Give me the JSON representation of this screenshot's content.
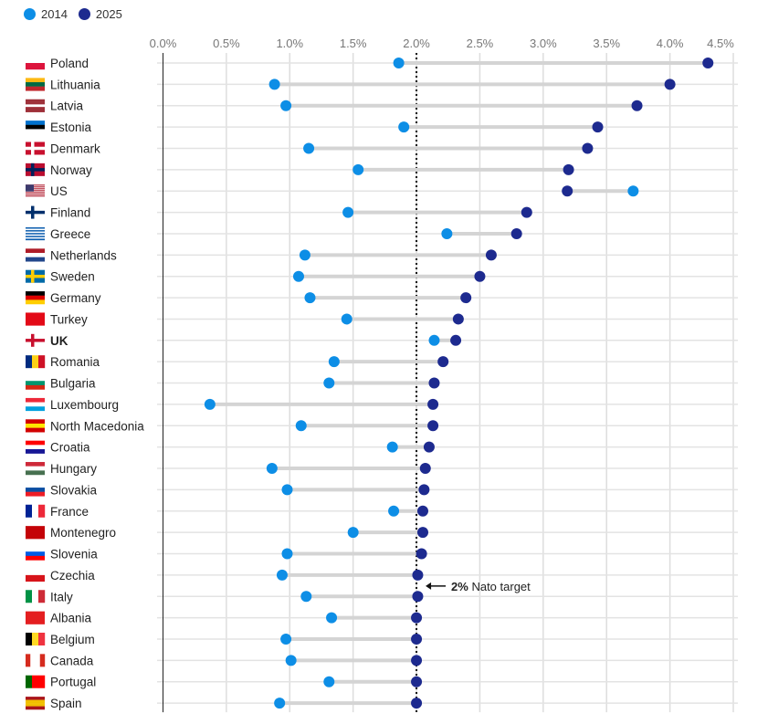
{
  "colors": {
    "y2014": "#0d8ee6",
    "y2025": "#1d2a8f",
    "grid": "#dddddd",
    "connector": "#d4d4d4"
  },
  "legend": [
    {
      "label": "2014",
      "color": "#0d8ee6"
    },
    {
      "label": "2025",
      "color": "#1d2a8f"
    }
  ],
  "chart_data": {
    "type": "dumbbell",
    "title": "",
    "xlabel": "",
    "ylabel": "",
    "xlim": [
      0,
      4.5
    ],
    "ticks": [
      "0.0%",
      "0.5%",
      "1.0%",
      "1.5%",
      "2.0%",
      "2.5%",
      "3.0%",
      "3.5%",
      "4.0%",
      "4.5%"
    ],
    "tick_values": [
      0,
      0.5,
      1,
      1.5,
      2,
      2.5,
      3,
      3.5,
      4,
      4.5
    ],
    "reference": {
      "value": 2.0,
      "label_bold": "2%",
      "label": " Nato target"
    },
    "series_names": [
      "2014",
      "2025"
    ],
    "countries": [
      {
        "name": "Poland",
        "v2014": 1.86,
        "v2025": 4.3,
        "flag": [
          "h",
          "#ffffff",
          "#dc143c"
        ]
      },
      {
        "name": "Lithuania",
        "v2014": 0.88,
        "v2025": 4.0,
        "flag": [
          "h",
          "#fdb913",
          "#006a44",
          "#c1272d"
        ]
      },
      {
        "name": "Latvia",
        "v2014": 0.97,
        "v2025": 3.74,
        "flag": [
          "h",
          "#9e3039",
          "#9e3039",
          "#ffffff",
          "#9e3039",
          "#9e3039"
        ]
      },
      {
        "name": "Estonia",
        "v2014": 1.9,
        "v2025": 3.43,
        "flag": [
          "h",
          "#0072ce",
          "#000000",
          "#ffffff"
        ]
      },
      {
        "name": "Denmark",
        "v2014": 1.15,
        "v2025": 3.35,
        "flag": [
          "cross",
          "#c8102e",
          "#ffffff"
        ]
      },
      {
        "name": "Norway",
        "v2014": 1.54,
        "v2025": 3.2,
        "flag": [
          "cross",
          "#ba0c2f",
          "#00205b"
        ]
      },
      {
        "name": "US",
        "v2014": 3.71,
        "v2025": 3.19,
        "flag": [
          "us",
          "#b22234",
          "#3c3b6e"
        ]
      },
      {
        "name": "Finland",
        "v2014": 1.46,
        "v2025": 2.87,
        "flag": [
          "cross",
          "#ffffff",
          "#002f6c"
        ]
      },
      {
        "name": "Greece",
        "v2014": 2.24,
        "v2025": 2.79,
        "flag": [
          "h",
          "#0d5eaf",
          "#ffffff",
          "#0d5eaf",
          "#ffffff",
          "#0d5eaf",
          "#ffffff",
          "#0d5eaf",
          "#ffffff",
          "#0d5eaf"
        ]
      },
      {
        "name": "Netherlands",
        "v2014": 1.12,
        "v2025": 2.59,
        "flag": [
          "h",
          "#ae1c28",
          "#ffffff",
          "#21468b"
        ]
      },
      {
        "name": "Sweden",
        "v2014": 1.07,
        "v2025": 2.5,
        "flag": [
          "cross",
          "#006aa7",
          "#fecc00"
        ]
      },
      {
        "name": "Germany",
        "v2014": 1.16,
        "v2025": 2.39,
        "flag": [
          "h",
          "#000000",
          "#dd0000",
          "#ffce00"
        ]
      },
      {
        "name": "Turkey",
        "v2014": 1.45,
        "v2025": 2.33,
        "flag": [
          "h",
          "#e30a17"
        ]
      },
      {
        "name": "UK",
        "v2014": 2.14,
        "v2025": 2.31,
        "flag": [
          "cross",
          "#ffffff",
          "#c8102e"
        ],
        "bold": true
      },
      {
        "name": "Romania",
        "v2014": 1.35,
        "v2025": 2.21,
        "flag": [
          "v",
          "#002b7f",
          "#fcd116",
          "#ce1126"
        ]
      },
      {
        "name": "Bulgaria",
        "v2014": 1.31,
        "v2025": 2.14,
        "flag": [
          "h",
          "#ffffff",
          "#00966e",
          "#d62612"
        ]
      },
      {
        "name": "Luxembourg",
        "v2014": 0.37,
        "v2025": 2.13,
        "flag": [
          "h",
          "#ed2939",
          "#ffffff",
          "#00a1de"
        ]
      },
      {
        "name": "North Macedonia",
        "v2014": 1.09,
        "v2025": 2.13,
        "flag": [
          "h",
          "#d20000",
          "#ffe600",
          "#d20000"
        ]
      },
      {
        "name": "Croatia",
        "v2014": 1.81,
        "v2025": 2.1,
        "flag": [
          "h",
          "#ff0000",
          "#ffffff",
          "#171796"
        ]
      },
      {
        "name": "Hungary",
        "v2014": 0.86,
        "v2025": 2.07,
        "flag": [
          "h",
          "#ce2939",
          "#ffffff",
          "#477050"
        ]
      },
      {
        "name": "Slovakia",
        "v2014": 0.98,
        "v2025": 2.06,
        "flag": [
          "h",
          "#ffffff",
          "#0b4ea2",
          "#ee1c25"
        ]
      },
      {
        "name": "France",
        "v2014": 1.82,
        "v2025": 2.05,
        "flag": [
          "v",
          "#002395",
          "#ffffff",
          "#ed2939"
        ]
      },
      {
        "name": "Montenegro",
        "v2014": 1.5,
        "v2025": 2.05,
        "flag": [
          "h",
          "#c40308"
        ]
      },
      {
        "name": "Slovenia",
        "v2014": 0.98,
        "v2025": 2.04,
        "flag": [
          "h",
          "#ffffff",
          "#005ce5",
          "#ff0000"
        ]
      },
      {
        "name": "Czechia",
        "v2014": 0.94,
        "v2025": 2.01,
        "flag": [
          "h",
          "#ffffff",
          "#d7141a"
        ]
      },
      {
        "name": "Italy",
        "v2014": 1.13,
        "v2025": 2.01,
        "flag": [
          "v",
          "#009246",
          "#ffffff",
          "#ce2b37"
        ]
      },
      {
        "name": "Albania",
        "v2014": 1.33,
        "v2025": 2.0,
        "flag": [
          "h",
          "#e41e20"
        ]
      },
      {
        "name": "Belgium",
        "v2014": 0.97,
        "v2025": 2.0,
        "flag": [
          "v",
          "#000000",
          "#fdda24",
          "#ef3340"
        ]
      },
      {
        "name": "Canada",
        "v2014": 1.01,
        "v2025": 2.0,
        "flag": [
          "v",
          "#d52b1e",
          "#ffffff",
          "#ffffff",
          "#d52b1e"
        ]
      },
      {
        "name": "Portugal",
        "v2014": 1.31,
        "v2025": 2.0,
        "flag": [
          "v",
          "#006600",
          "#ff0000",
          "#ff0000"
        ]
      },
      {
        "name": "Spain",
        "v2014": 0.92,
        "v2025": 2.0,
        "flag": [
          "h",
          "#aa151b",
          "#f1bf00",
          "#f1bf00",
          "#aa151b"
        ]
      }
    ]
  }
}
